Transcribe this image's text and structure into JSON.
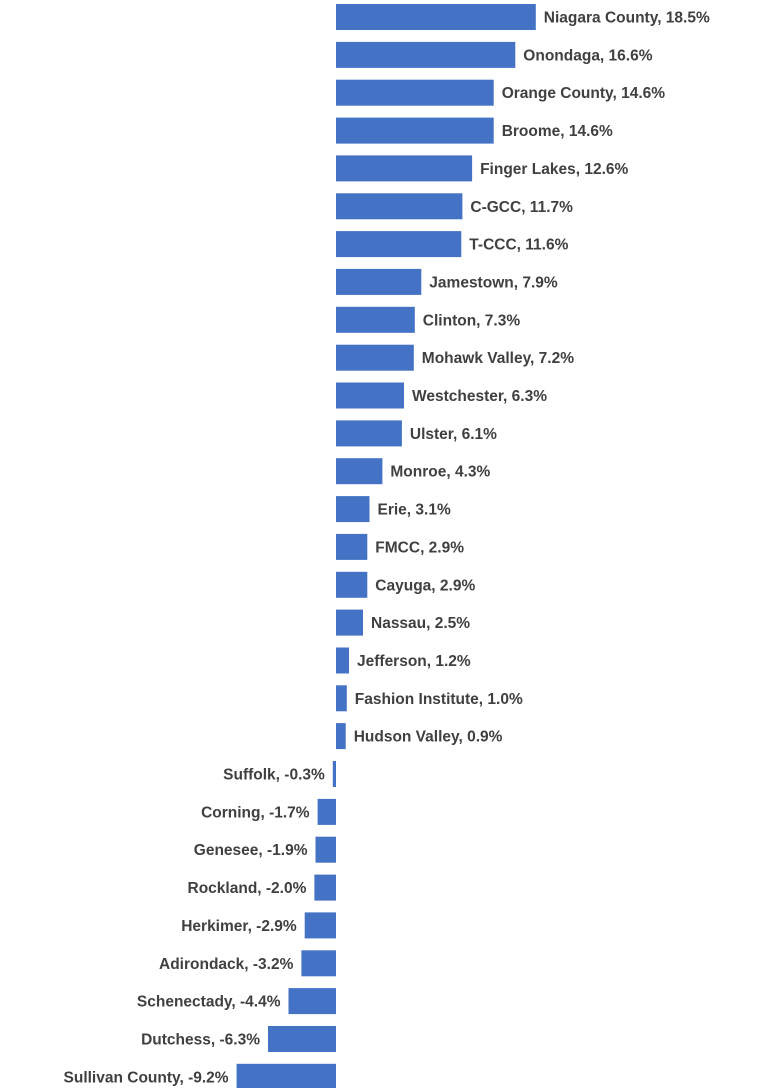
{
  "chart_data": {
    "type": "bar",
    "orientation": "horizontal",
    "bar_color": "#4472C4",
    "label_color": "#404040",
    "categories": [
      "Niagara County",
      "Onondaga",
      "Orange County",
      "Broome",
      "Finger Lakes",
      "C-GCC",
      "T-CCC",
      "Jamestown",
      "Clinton",
      "Mohawk Valley",
      "Westchester",
      "Ulster",
      "Monroe",
      "Erie",
      "FMCC",
      "Cayuga",
      "Nassau",
      "Jefferson",
      "Fashion Institute",
      "Hudson Valley",
      "Suffolk",
      "Corning",
      "Genesee",
      "Rockland",
      "Herkimer",
      "Adirondack",
      "Schenectady",
      "Dutchess",
      "Sullivan County"
    ],
    "values": [
      18.5,
      16.6,
      14.6,
      14.6,
      12.6,
      11.7,
      11.6,
      7.9,
      7.3,
      7.2,
      6.3,
      6.1,
      4.3,
      3.1,
      2.9,
      2.9,
      2.5,
      1.2,
      1.0,
      0.9,
      -0.3,
      -1.7,
      -1.9,
      -2.0,
      -2.9,
      -3.2,
      -4.4,
      -6.3,
      -9.2
    ],
    "labels": [
      "Niagara County, 18.5%",
      "Onondaga, 16.6%",
      "Orange County, 14.6%",
      "Broome, 14.6%",
      "Finger Lakes, 12.6%",
      "C-GCC, 11.7%",
      "T-CCC, 11.6%",
      "Jamestown, 7.9%",
      "Clinton, 7.3%",
      "Mohawk Valley, 7.2%",
      "Westchester, 6.3%",
      "Ulster, 6.1%",
      "Monroe, 4.3%",
      "Erie, 3.1%",
      "FMCC, 2.9%",
      "Cayuga, 2.9%",
      "Nassau, 2.5%",
      "Jefferson, 1.2%",
      "Fashion Institute, 1.0%",
      "Hudson Valley, 0.9%",
      "Suffolk, -0.3%",
      "Corning, -1.7%",
      "Genesee, -1.9%",
      "Rockland, -2.0%",
      "Herkimer, -2.9%",
      "Adirondack, -3.2%",
      "Schenectady, -4.4%",
      "Dutchess, -6.3%",
      "Sullivan County, -9.2%"
    ],
    "value_unit": "%",
    "title": "",
    "xlabel": "",
    "ylabel": "",
    "grid": false,
    "legend": "none"
  }
}
